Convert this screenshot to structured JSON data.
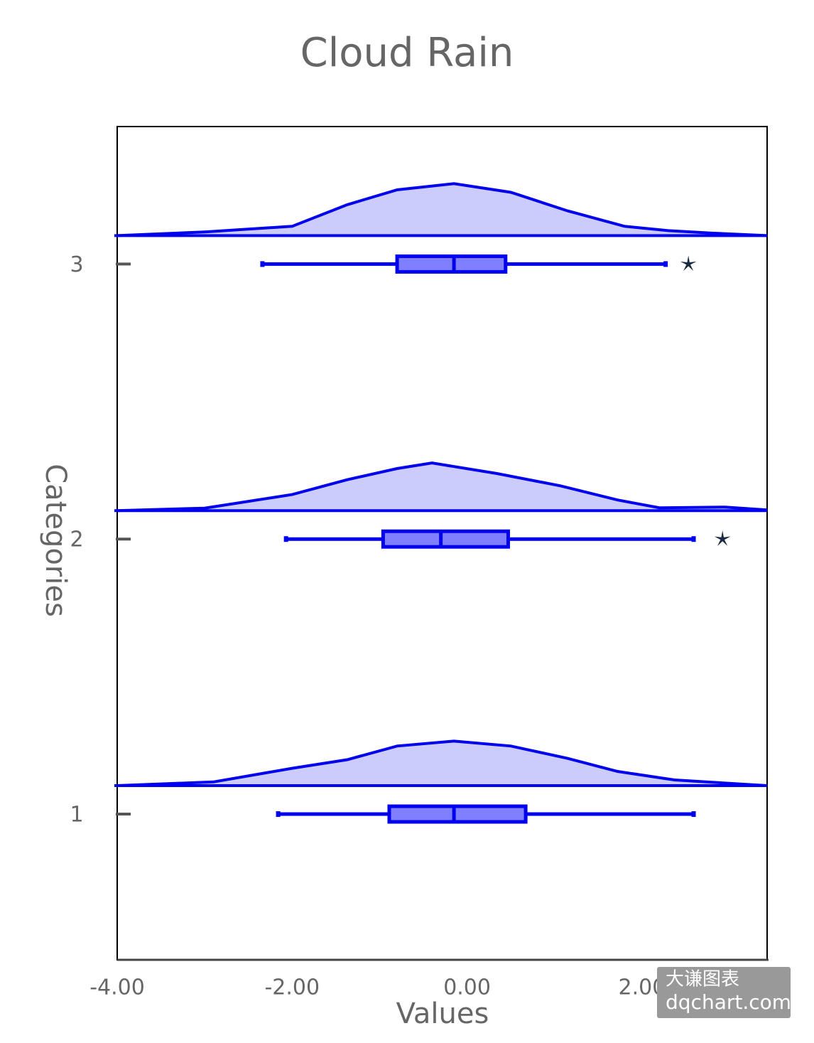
{
  "chart_data": {
    "type": "raincloud",
    "title": "Cloud Rain",
    "xlabel": "Values",
    "ylabel": "Categories",
    "color": "#0000ee",
    "outlier_color": "#1a2a40",
    "xlim": [
      -4,
      3.43
    ],
    "xticks": [
      {
        "value": -4,
        "label": "-4.00"
      },
      {
        "value": -2,
        "label": "-2.00"
      },
      {
        "value": 0,
        "label": "0.00"
      },
      {
        "value": 2,
        "label": "2.00"
      }
    ],
    "ylim": [
      0.47,
      3.5
    ],
    "yticks": [
      1,
      2,
      3
    ],
    "groups": [
      {
        "y": 1,
        "min": -2.16,
        "q1": -0.89,
        "median": -0.15,
        "q3": 0.67,
        "max": 2.59,
        "outliers": [],
        "density": {
          "x": [
            -4,
            -2.9,
            -2,
            -1.37,
            -0.8,
            -0.15,
            0.5,
            1.15,
            1.72,
            2.37,
            3.43
          ],
          "y": [
            0,
            0.03,
            0.14,
            0.21,
            0.32,
            0.36,
            0.32,
            0.22,
            0.115,
            0.046,
            0
          ]
        }
      },
      {
        "y": 2,
        "min": -2.07,
        "q1": -0.96,
        "median": -0.3,
        "q3": 0.47,
        "max": 2.59,
        "outliers": [
          2.92
        ],
        "density": {
          "x": [
            -4,
            -3,
            -2,
            -1.37,
            -0.8,
            -0.4,
            0.34,
            1.07,
            1.72,
            2.2,
            2.95,
            3.43
          ],
          "y": [
            0,
            0.02,
            0.13,
            0.25,
            0.34,
            0.385,
            0.3,
            0.2,
            0.086,
            0.023,
            0.029,
            0.005
          ]
        }
      },
      {
        "y": 3,
        "min": -2.34,
        "q1": -0.8,
        "median": -0.15,
        "q3": 0.44,
        "max": 2.27,
        "outliers": [
          2.53
        ],
        "density": {
          "x": [
            -4,
            -3,
            -2,
            -1.37,
            -0.8,
            -0.15,
            0.5,
            1.15,
            1.8,
            2.3,
            2.8,
            3.43
          ],
          "y": [
            0,
            0.03,
            0.075,
            0.25,
            0.37,
            0.42,
            0.35,
            0.2,
            0.075,
            0.04,
            0.02,
            0
          ]
        }
      }
    ]
  },
  "watermark": {
    "line1": "大谦图表",
    "line2": "dqchart.com"
  }
}
